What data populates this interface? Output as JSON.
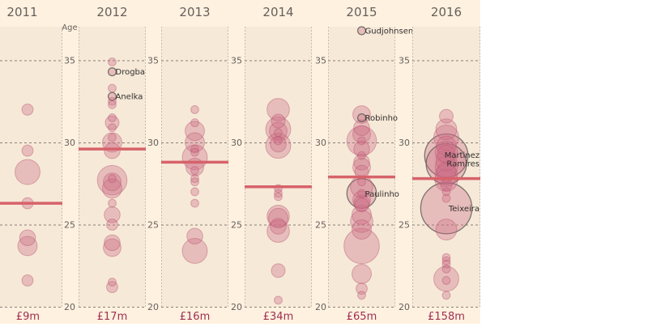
{
  "colors": {
    "page_background": "#fff1e0",
    "panel_background": "#f6e9d8",
    "bubble_fill": "#cc6e87",
    "bubble_stroke": "#b8566f",
    "highlight_stroke": "#66605c",
    "average_line": "#d7626a",
    "total_text": "#9e2f50",
    "label_text": "#66605c"
  },
  "chart_data": {
    "type": "scatter",
    "subtype": "bubble-strip",
    "title": "",
    "ylabel": "Age",
    "ylim": [
      20,
      38
    ],
    "yticks": [
      20,
      25,
      30,
      35
    ],
    "grid": true,
    "size_encoding": "transfer fee",
    "panels": [
      {
        "year": "2011",
        "total": "£9m",
        "average_age": 26.3,
        "points": [
          {
            "age": 32.0,
            "size": 1
          },
          {
            "age": 29.5,
            "size": 1
          },
          {
            "age": 28.2,
            "size": 5
          },
          {
            "age": 26.3,
            "size": 1
          },
          {
            "age": 24.2,
            "size": 2
          },
          {
            "age": 23.7,
            "size": 3
          },
          {
            "age": 21.6,
            "size": 1
          }
        ],
        "labels": []
      },
      {
        "year": "2012",
        "total": "£17m",
        "average_age": 29.6,
        "points": [
          {
            "age": 34.9,
            "size": 0.5
          },
          {
            "age": 34.3,
            "size": 0.5,
            "label": "Drogba"
          },
          {
            "age": 33.3,
            "size": 0.5
          },
          {
            "age": 32.8,
            "size": 0.5,
            "label": "Anelka"
          },
          {
            "age": 32.5,
            "size": 0.5
          },
          {
            "age": 32.3,
            "size": 0.5
          },
          {
            "age": 31.5,
            "size": 0.5
          },
          {
            "age": 31.2,
            "size": 1.5
          },
          {
            "age": 30.9,
            "size": 0.5
          },
          {
            "age": 30.3,
            "size": 0.5
          },
          {
            "age": 30.0,
            "size": 3
          },
          {
            "age": 29.5,
            "size": 2
          },
          {
            "age": 27.8,
            "size": 0.5
          },
          {
            "age": 27.7,
            "size": 7
          },
          {
            "age": 27.6,
            "size": 2.5
          },
          {
            "age": 27.2,
            "size": 3
          },
          {
            "age": 26.3,
            "size": 0.5
          },
          {
            "age": 25.6,
            "size": 2
          },
          {
            "age": 25.0,
            "size": 1
          },
          {
            "age": 23.9,
            "size": 2
          },
          {
            "age": 23.6,
            "size": 2.5
          },
          {
            "age": 21.5,
            "size": 0.5
          },
          {
            "age": 21.2,
            "size": 1
          }
        ],
        "labels": [
          "Drogba",
          "Anelka"
        ]
      },
      {
        "year": "2013",
        "total": "£16m",
        "average_age": 28.8,
        "points": [
          {
            "age": 32.0,
            "size": 0.5
          },
          {
            "age": 31.2,
            "size": 0.5
          },
          {
            "age": 30.7,
            "size": 3
          },
          {
            "age": 30.0,
            "size": 3
          },
          {
            "age": 29.6,
            "size": 0.5
          },
          {
            "age": 29.4,
            "size": 0.5
          },
          {
            "age": 29.1,
            "size": 5
          },
          {
            "age": 28.5,
            "size": 2.5
          },
          {
            "age": 28.3,
            "size": 0.5
          },
          {
            "age": 27.8,
            "size": 0.5
          },
          {
            "age": 27.6,
            "size": 0.5
          },
          {
            "age": 27.0,
            "size": 0.5
          },
          {
            "age": 26.3,
            "size": 0.5
          },
          {
            "age": 24.3,
            "size": 2
          },
          {
            "age": 23.4,
            "size": 5
          }
        ],
        "labels": []
      },
      {
        "year": "2014",
        "total": "£34m",
        "average_age": 27.3,
        "points": [
          {
            "age": 32.0,
            "size": 4
          },
          {
            "age": 31.3,
            "size": 1.5
          },
          {
            "age": 30.8,
            "size": 5
          },
          {
            "age": 30.7,
            "size": 2.5
          },
          {
            "age": 30.6,
            "size": 0.5
          },
          {
            "age": 30.1,
            "size": 0.5
          },
          {
            "age": 29.8,
            "size": 5
          },
          {
            "age": 29.9,
            "size": 2
          },
          {
            "age": 27.2,
            "size": 0.5
          },
          {
            "age": 26.9,
            "size": 0.5
          },
          {
            "age": 26.7,
            "size": 0.5
          },
          {
            "age": 25.5,
            "size": 4
          },
          {
            "age": 25.4,
            "size": 3
          },
          {
            "age": 24.9,
            "size": 2
          },
          {
            "age": 24.6,
            "size": 4
          },
          {
            "age": 22.2,
            "size": 1.5
          },
          {
            "age": 20.4,
            "size": 0.5
          }
        ],
        "labels": []
      },
      {
        "year": "2015",
        "total": "£65m",
        "average_age": 27.9,
        "points": [
          {
            "age": 36.8,
            "size": 0.5,
            "label": "Gudjohnsen"
          },
          {
            "age": 31.7,
            "size": 2.5
          },
          {
            "age": 31.5,
            "size": 0.5,
            "label": "Robinho"
          },
          {
            "age": 30.9,
            "size": 2
          },
          {
            "age": 30.5,
            "size": 2.5
          },
          {
            "age": 30.1,
            "size": 0.5
          },
          {
            "age": 30.1,
            "size": 7
          },
          {
            "age": 29.6,
            "size": 2
          },
          {
            "age": 29.2,
            "size": 0.5
          },
          {
            "age": 28.8,
            "size": 2
          },
          {
            "age": 28.5,
            "size": 2.5
          },
          {
            "age": 28.2,
            "size": 1.5
          },
          {
            "age": 27.6,
            "size": 0.5
          },
          {
            "age": 27.3,
            "size": 4
          },
          {
            "age": 26.9,
            "size": 0.5
          },
          {
            "age": 26.9,
            "size": 7,
            "label": "Paulinho"
          },
          {
            "age": 26.5,
            "size": 2.5
          },
          {
            "age": 26.3,
            "size": 2
          },
          {
            "age": 26.2,
            "size": 1.5
          },
          {
            "age": 25.6,
            "size": 3
          },
          {
            "age": 25.2,
            "size": 4
          },
          {
            "age": 24.7,
            "size": 3
          },
          {
            "age": 23.7,
            "size": 10
          },
          {
            "age": 22.0,
            "size": 3
          },
          {
            "age": 21.1,
            "size": 1
          },
          {
            "age": 20.7,
            "size": 0.5
          }
        ],
        "labels": [
          "Gudjohnsen",
          "Robinho",
          "Paulinho"
        ]
      },
      {
        "year": "2016",
        "total": "£158m",
        "average_age": 27.8,
        "points": [
          {
            "age": 31.6,
            "size": 1.5
          },
          {
            "age": 30.8,
            "size": 3.5
          },
          {
            "age": 30.3,
            "size": 5
          },
          {
            "age": 29.8,
            "size": 3
          },
          {
            "age": 29.3,
            "size": 2.5
          },
          {
            "age": 29.4,
            "size": 4
          },
          {
            "age": 29.2,
            "size": 15,
            "label": "Martinez"
          },
          {
            "age": 28.9,
            "size": 3.5
          },
          {
            "age": 28.7,
            "size": 13,
            "label": "Ramires"
          },
          {
            "age": 28.5,
            "size": 4
          },
          {
            "age": 28.2,
            "size": 3
          },
          {
            "age": 28.0,
            "size": 4
          },
          {
            "age": 27.0,
            "size": 0.5
          },
          {
            "age": 27.7,
            "size": 4
          },
          {
            "age": 27.4,
            "size": 1
          },
          {
            "age": 26.6,
            "size": 0.5
          },
          {
            "age": 26.0,
            "size": 21,
            "label": "Teixeira"
          },
          {
            "age": 24.7,
            "size": 3.5
          },
          {
            "age": 23.0,
            "size": 0.5
          },
          {
            "age": 22.8,
            "size": 0.5
          },
          {
            "age": 22.6,
            "size": 0.5
          },
          {
            "age": 22.3,
            "size": 0.5
          },
          {
            "age": 21.7,
            "size": 5
          },
          {
            "age": 21.6,
            "size": 0.5
          },
          {
            "age": 20.7,
            "size": 0.5
          }
        ],
        "labels": [
          "Martinez",
          "Ramires",
          "Teixeira"
        ]
      }
    ]
  }
}
